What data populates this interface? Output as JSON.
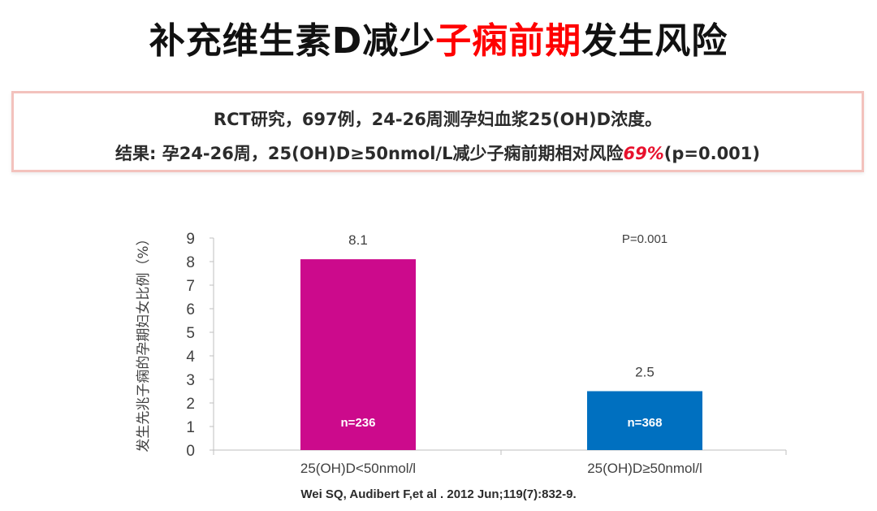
{
  "header": {
    "title_pre": "补充维生素D减少",
    "title_highlight": "子痫前期",
    "title_post": "发生风险"
  },
  "summary": {
    "line1": "RCT研究，697例，24-26周测孕妇血浆25(OH)D浓度。",
    "line2_pre": "结果: 孕24-26周，25(OH)D≥50nmol/L减少子痫前期相对风险",
    "line2_highlight": "69%",
    "line2_post": "(p=0.001)"
  },
  "chart_data": {
    "type": "bar",
    "categories": [
      "25(OH)D<50nmol/l",
      "25(OH)D≥50nmol/l"
    ],
    "values": [
      8.1,
      2.5
    ],
    "value_labels": [
      "8.1",
      "2.5"
    ],
    "inner_labels": [
      "n=236",
      "n=368"
    ],
    "colors": [
      "#cc0a8c",
      "#0070c0"
    ],
    "annotation": "P=0.001",
    "ylabel": "发生先兆子痫的孕期妇女比例（%）",
    "ylim": [
      0,
      9
    ],
    "yticks": [
      0,
      1,
      2,
      3,
      4,
      5,
      6,
      7,
      8,
      9
    ],
    "grid": false
  },
  "citation": "Wei SQ, Audibert F,et al . 2012 Jun;119(7):832-9."
}
